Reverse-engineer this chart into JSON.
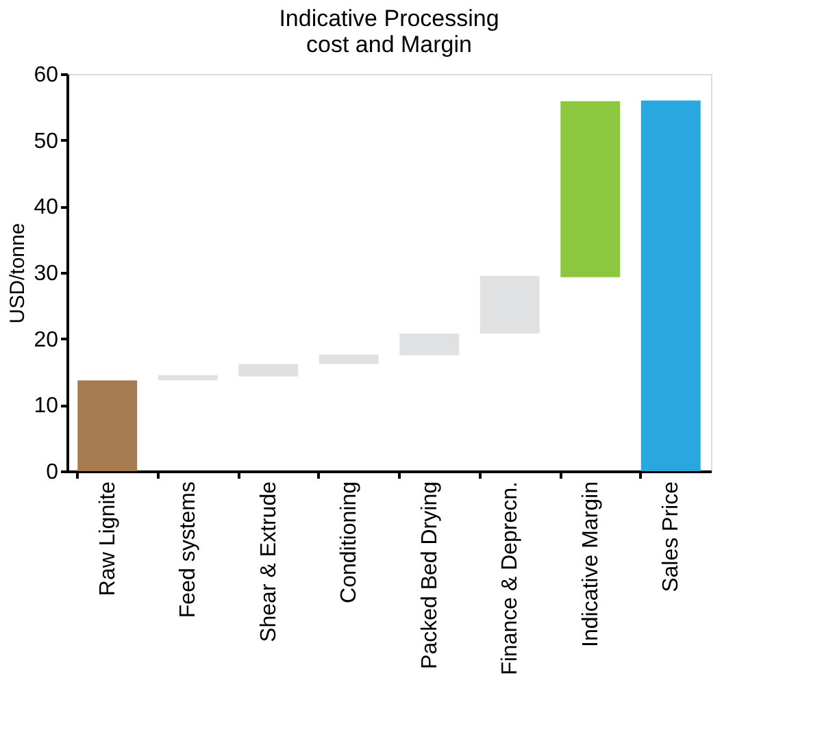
{
  "chart_data": {
    "type": "bar",
    "title": "Indicative Processing cost and Margin",
    "ylabel": "USD/tonne",
    "categories": [
      "Raw Lignite",
      "Feed systems",
      "Shear & Extrude",
      "Conditioning",
      "Packed Bed Drying",
      "Finance & Deprecn.",
      "Indicative Margin",
      "Sales Price"
    ],
    "values": [
      13.7,
      0.8,
      1.9,
      1.4,
      3.3,
      8.7,
      26.6,
      56
    ],
    "base": [
      0,
      13.7,
      14.3,
      16.2,
      17.5,
      20.8,
      29.3,
      0
    ],
    "colors": [
      "#a67b50",
      "#e0e1e3",
      "#e0e1e3",
      "#e0e1e3",
      "#e0e1e3",
      "#e0e1e3",
      "#8dc63f",
      "#29a8e0"
    ],
    "ylim": [
      0,
      60
    ],
    "yticks": [
      0,
      10,
      20,
      30,
      40,
      50,
      60
    ],
    "grid": false
  }
}
